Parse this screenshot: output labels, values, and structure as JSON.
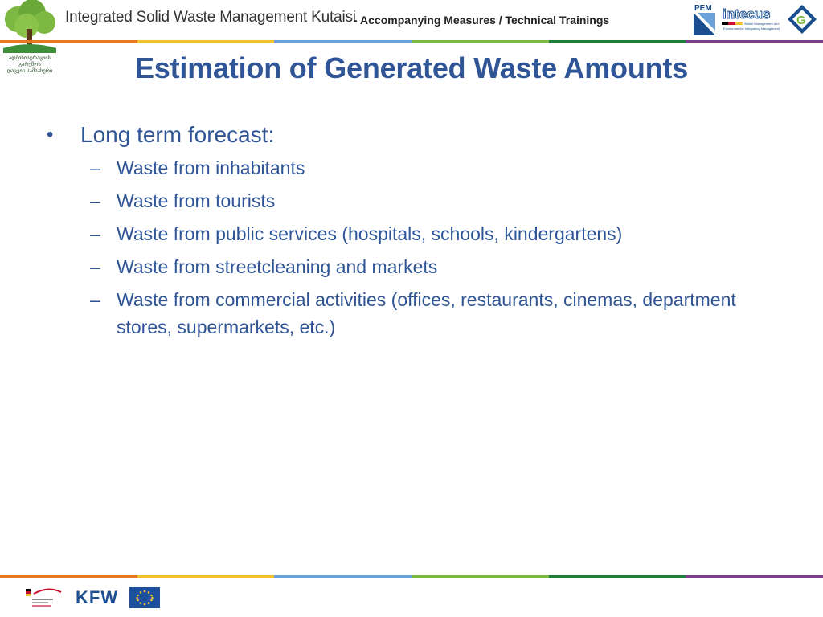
{
  "header": {
    "project_title": "Integrated Solid Waste Management Kutaisi",
    "subtitle": "- Accompanying Measures / Technical Trainings",
    "tree_logo_text_line1": "ადმინისტრაციის გარემოს",
    "tree_logo_text_line2": "დაცვის სამსახური",
    "partner_logo_1": "PEM CONSULT",
    "partner_logo_2": "intecus",
    "partner_logo_2_tagline": "Waste Management and Environmental Integrating Management"
  },
  "slide": {
    "title": "Estimation of Generated Waste Amounts",
    "main_bullet": "Long term forecast:",
    "sub_bullets": [
      "Waste from inhabitants",
      "Waste from tourists",
      "Waste from public services (hospitals, schools, kindergartens)",
      "Waste from streetcleaning and markets",
      "Waste from commercial activities (offices, restaurants, cinemas, department stores, supermarkets, etc.)"
    ]
  },
  "footer": {
    "kfw_label": "KFW"
  },
  "colors": {
    "title": "#2f5597",
    "bar_colors": [
      "#e87722",
      "#f2c12e",
      "#6aa1d8",
      "#7db843",
      "#1e7f3c",
      "#7b3f8c"
    ]
  }
}
